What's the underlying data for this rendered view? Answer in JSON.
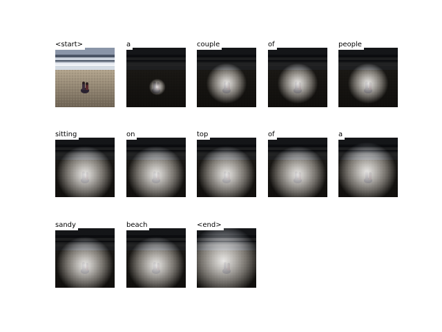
{
  "figure": {
    "title": "",
    "panels": [
      {
        "word": "<start>",
        "kind": "photo"
      },
      {
        "word": "a",
        "kind": "attention",
        "focus": "small"
      },
      {
        "word": "couple",
        "kind": "attention",
        "focus": "medium"
      },
      {
        "word": "of",
        "kind": "attention",
        "focus": "medium"
      },
      {
        "word": "people",
        "kind": "attention",
        "focus": "medium"
      },
      {
        "word": "sitting",
        "kind": "attention",
        "focus": "wide"
      },
      {
        "word": "on",
        "kind": "attention",
        "focus": "wide"
      },
      {
        "word": "top",
        "kind": "attention",
        "focus": "wide"
      },
      {
        "word": "of",
        "kind": "attention",
        "focus": "wide"
      },
      {
        "word": "a",
        "kind": "attention",
        "focus": "wide-top"
      },
      {
        "word": "sandy",
        "kind": "attention",
        "focus": "wide"
      },
      {
        "word": "beach",
        "kind": "attention",
        "focus": "wide"
      },
      {
        "word": "<end>",
        "kind": "attention",
        "focus": "diffuse"
      }
    ]
  },
  "colors": {
    "sky": "#8a95a8",
    "sea_dark": "#4b5566",
    "surf": "#dfe6ee",
    "sand_light": "#b3a58e",
    "sand_dark": "#6d6253",
    "overlay": "#000000",
    "glow": "#ffffff"
  }
}
